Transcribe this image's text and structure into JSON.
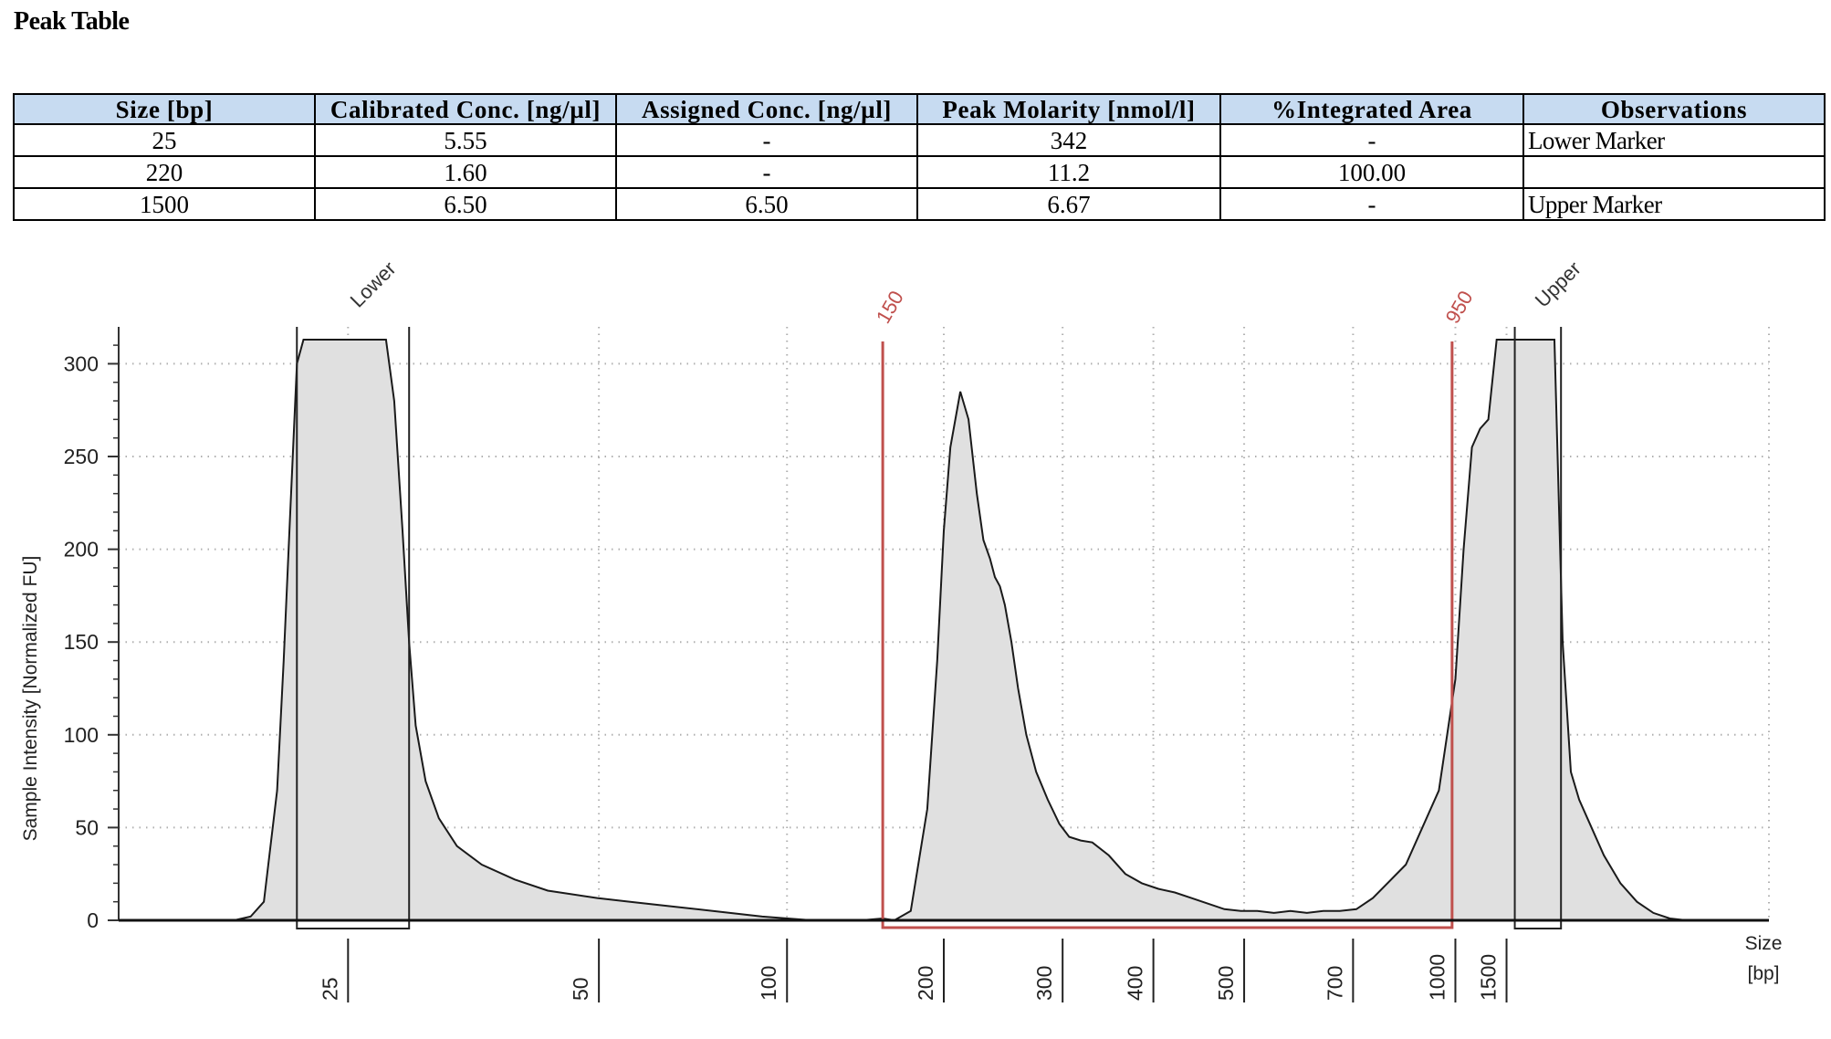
{
  "page_title": "Peak Table",
  "table": {
    "headers": [
      "Size [bp]",
      "Calibrated Conc. [ng/µl]",
      "Assigned Conc. [ng/µl]",
      "Peak Molarity [nmol/l]",
      "%Integrated Area",
      "Observations"
    ],
    "rows": [
      [
        "25",
        "5.55",
        "-",
        "342",
        "-",
        "Lower Marker"
      ],
      [
        "220",
        "1.60",
        "-",
        "11.2",
        "100.00",
        ""
      ],
      [
        "1500",
        "6.50",
        "6.50",
        "6.67",
        "-",
        "Upper Marker"
      ]
    ]
  },
  "chart_data": {
    "type": "area",
    "ylabel": "Sample Intensity [Normalized FU]",
    "xlabel": "Size\n[bp]",
    "xlabel_lines": [
      "Size",
      "[bp]"
    ],
    "ylim": [
      0,
      313
    ],
    "y_ticks": [
      0,
      50,
      100,
      150,
      200,
      250,
      300
    ],
    "x_ticks": [
      "25",
      "50",
      "100",
      "200",
      "300",
      "400",
      "500",
      "700",
      "1000",
      "1500"
    ],
    "x_tick_positions": [
      0.139,
      0.291,
      0.405,
      0.5,
      0.572,
      0.627,
      0.682,
      0.748,
      0.81,
      0.841
    ],
    "grid": true,
    "colors": {
      "trace_fill": "#e0e0e0",
      "trace_line": "#1a1a1a",
      "region": "#c0504d",
      "marker_box": "#222222",
      "grid": "#b0b0b0"
    },
    "markers": [
      {
        "label": "Lower",
        "size_bp": 25,
        "x_from": 0.108,
        "x_to": 0.176
      },
      {
        "label": "Upper",
        "size_bp": 1500,
        "x_from": 0.846,
        "x_to": 0.874
      }
    ],
    "region": {
      "from_label": "150",
      "to_label": "950",
      "x_from": 0.463,
      "x_to": 0.808
    },
    "trace": {
      "x": [
        0.0,
        0.07,
        0.08,
        0.088,
        0.096,
        0.1,
        0.104,
        0.108,
        0.112,
        0.116,
        0.12,
        0.126,
        0.13,
        0.14,
        0.148,
        0.152,
        0.156,
        0.162,
        0.167,
        0.172,
        0.176,
        0.18,
        0.186,
        0.194,
        0.205,
        0.22,
        0.24,
        0.26,
        0.29,
        0.31,
        0.33,
        0.36,
        0.39,
        0.42,
        0.45,
        0.463,
        0.47,
        0.48,
        0.49,
        0.496,
        0.5,
        0.504,
        0.51,
        0.515,
        0.52,
        0.524,
        0.528,
        0.531,
        0.534,
        0.537,
        0.541,
        0.545,
        0.55,
        0.556,
        0.563,
        0.57,
        0.576,
        0.583,
        0.59,
        0.6,
        0.61,
        0.62,
        0.63,
        0.64,
        0.65,
        0.66,
        0.67,
        0.68,
        0.69,
        0.7,
        0.71,
        0.72,
        0.73,
        0.74,
        0.75,
        0.76,
        0.78,
        0.8,
        0.81,
        0.815,
        0.82,
        0.825,
        0.83,
        0.835,
        0.838,
        0.842,
        0.845,
        0.848,
        0.852,
        0.856,
        0.86,
        0.865,
        0.87,
        0.875,
        0.88,
        0.885,
        0.89,
        0.9,
        0.91,
        0.92,
        0.93,
        0.94,
        0.95,
        0.96,
        1.0
      ],
      "y": [
        0,
        0,
        2,
        10,
        70,
        140,
        220,
        300,
        313,
        313,
        313,
        313,
        313,
        313,
        313,
        313,
        313,
        313,
        280,
        210,
        150,
        105,
        75,
        55,
        40,
        30,
        22,
        16,
        12,
        10,
        8,
        5,
        2,
        0,
        0,
        1,
        0,
        5,
        60,
        140,
        210,
        255,
        285,
        270,
        230,
        205,
        195,
        185,
        180,
        170,
        150,
        125,
        100,
        80,
        65,
        52,
        45,
        43,
        42,
        35,
        25,
        20,
        17,
        15,
        12,
        9,
        6,
        5,
        5,
        4,
        5,
        4,
        5,
        5,
        6,
        12,
        30,
        70,
        130,
        200,
        255,
        265,
        270,
        313,
        313,
        313,
        313,
        313,
        313,
        313,
        313,
        313,
        313,
        150,
        80,
        65,
        55,
        35,
        20,
        10,
        4,
        1,
        0,
        0,
        0
      ]
    }
  }
}
